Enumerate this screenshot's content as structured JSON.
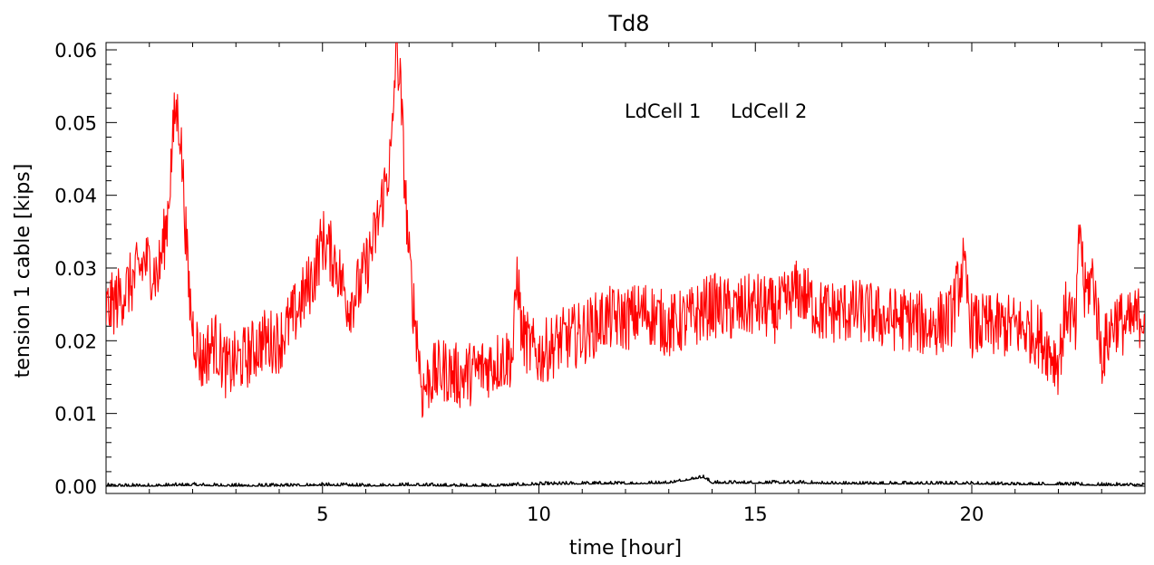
{
  "chart_data": {
    "type": "line",
    "title": "Td8",
    "xlabel": "time [hour]",
    "ylabel": "tension 1 cable [kips]",
    "xlim": [
      0.0,
      24.0
    ],
    "ylim": [
      -0.001,
      0.061
    ],
    "xticks": [
      5,
      10,
      15,
      20
    ],
    "xtick_labels": [
      "5",
      "10",
      "15",
      "20"
    ],
    "yticks": [
      0.0,
      0.01,
      0.02,
      0.03,
      0.04,
      0.05,
      0.06
    ],
    "ytick_labels": [
      "0.00",
      "0.01",
      "0.02",
      "0.03",
      "0.04",
      "0.05",
      "0.06"
    ],
    "grid": false,
    "legend_position": "top-center",
    "series": [
      {
        "name": "LdCell 1",
        "color": "#000000",
        "x": [
          0.0,
          1.0,
          2.0,
          3.0,
          4.0,
          5.0,
          6.0,
          7.0,
          8.0,
          9.0,
          10.0,
          11.0,
          12.0,
          13.0,
          13.8,
          14.0,
          15.0,
          16.0,
          17.0,
          18.0,
          19.0,
          20.0,
          21.0,
          22.0,
          23.0,
          24.0
        ],
        "y": [
          0.0,
          0.0,
          0.0001,
          0.0,
          0.0,
          0.0001,
          0.0,
          0.0001,
          0.0,
          0.0,
          0.0002,
          0.0003,
          0.0003,
          0.0004,
          0.0012,
          0.0004,
          0.0004,
          0.0004,
          0.0003,
          0.0003,
          0.0003,
          0.0003,
          0.0002,
          0.0002,
          0.0001,
          0.0001
        ]
      },
      {
        "name": "LdCell 2",
        "color": "#ff0000",
        "x": [
          0.0,
          0.3,
          0.6,
          0.9,
          1.2,
          1.4,
          1.5,
          1.6,
          1.7,
          1.8,
          1.9,
          2.0,
          2.2,
          2.5,
          2.8,
          3.0,
          3.3,
          3.6,
          4.0,
          4.4,
          4.8,
          5.0,
          5.3,
          5.6,
          5.9,
          6.2,
          6.4,
          6.6,
          6.7,
          6.8,
          6.9,
          7.0,
          7.1,
          7.2,
          7.3,
          7.5,
          7.8,
          8.2,
          8.6,
          9.0,
          9.4,
          9.5,
          9.6,
          9.8,
          10.0,
          10.5,
          11.0,
          11.5,
          12.0,
          12.5,
          13.0,
          13.5,
          14.0,
          14.5,
          15.0,
          15.5,
          16.0,
          16.5,
          17.0,
          17.5,
          18.0,
          18.5,
          19.0,
          19.5,
          19.8,
          20.0,
          20.5,
          21.0,
          21.5,
          22.0,
          22.2,
          22.4,
          22.5,
          22.6,
          22.8,
          23.0,
          23.3,
          23.6,
          24.0
        ],
        "y": [
          0.024,
          0.026,
          0.028,
          0.031,
          0.029,
          0.036,
          0.044,
          0.052,
          0.05,
          0.04,
          0.028,
          0.022,
          0.017,
          0.02,
          0.016,
          0.017,
          0.018,
          0.02,
          0.02,
          0.024,
          0.029,
          0.034,
          0.031,
          0.025,
          0.028,
          0.034,
          0.04,
          0.046,
          0.061,
          0.055,
          0.042,
          0.031,
          0.025,
          0.02,
          0.013,
          0.015,
          0.016,
          0.015,
          0.016,
          0.017,
          0.018,
          0.03,
          0.021,
          0.019,
          0.018,
          0.02,
          0.021,
          0.023,
          0.023,
          0.024,
          0.022,
          0.023,
          0.025,
          0.024,
          0.025,
          0.024,
          0.027,
          0.024,
          0.024,
          0.024,
          0.023,
          0.023,
          0.022,
          0.023,
          0.03,
          0.022,
          0.022,
          0.022,
          0.021,
          0.017,
          0.025,
          0.021,
          0.037,
          0.026,
          0.029,
          0.018,
          0.023,
          0.022,
          0.024
        ]
      }
    ]
  }
}
